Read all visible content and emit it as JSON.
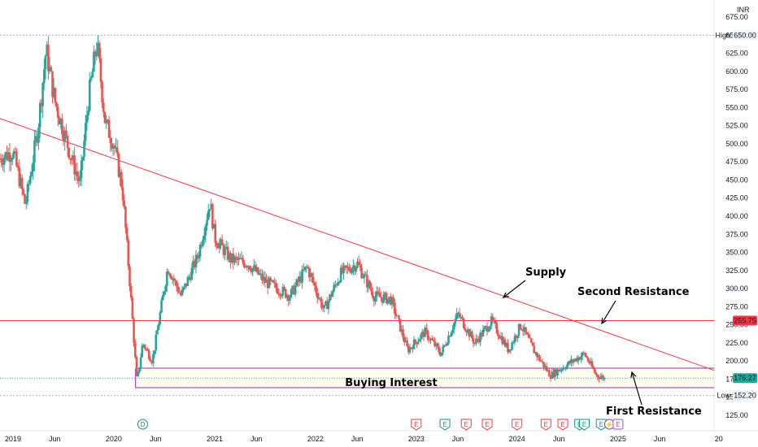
{
  "chart_data": {
    "type": "candlestick",
    "currency": "INR",
    "ylim": [
      112.5,
      687.5
    ],
    "y_ticks": [
      675,
      650,
      625,
      600,
      575,
      550,
      525,
      500,
      475,
      450,
      425,
      400,
      375,
      350,
      325,
      300,
      275,
      250,
      225,
      200,
      175,
      150,
      125
    ],
    "y_tick_labels": [
      "675.00",
      "650.00",
      "625.00",
      "600.00",
      "575.00",
      "550.00",
      "525.00",
      "500.00",
      "475.00",
      "450.00",
      "425.00",
      "400.00",
      "375.00",
      "350.00",
      "325.00",
      "300.00",
      "275.00",
      "250.00",
      "225.00",
      "200.00",
      "175.00",
      "150.00",
      "125.00"
    ],
    "x_range": [
      "2018-11-15",
      "2025-12-15"
    ],
    "x_ticks": [
      {
        "date": "2019-01-01",
        "label": "2019"
      },
      {
        "date": "2019-06-01",
        "label": "Jun"
      },
      {
        "date": "2020-01-01",
        "label": "2020"
      },
      {
        "date": "2020-06-01",
        "label": "Jun"
      },
      {
        "date": "2021-01-01",
        "label": "2021"
      },
      {
        "date": "2021-06-01",
        "label": "Jun"
      },
      {
        "date": "2022-01-01",
        "label": "2022"
      },
      {
        "date": "2022-06-01",
        "label": "Jun"
      },
      {
        "date": "2023-01-01",
        "label": "2023"
      },
      {
        "date": "2023-06-01",
        "label": "Jun"
      },
      {
        "date": "2024-01-01",
        "label": "2024"
      },
      {
        "date": "2024-06-01",
        "label": "Jun"
      },
      {
        "date": "2025-01-01",
        "label": "2025"
      },
      {
        "date": "2025-06-01",
        "label": "Jun"
      },
      {
        "date": "2026-01-01",
        "label": "20"
      }
    ],
    "price_path": [
      {
        "date": "2018-11-15",
        "close": 480
      },
      {
        "date": "2019-01-01",
        "close": 490
      },
      {
        "date": "2019-02-15",
        "close": 415
      },
      {
        "date": "2019-04-01",
        "close": 520
      },
      {
        "date": "2019-05-01",
        "close": 630
      },
      {
        "date": "2019-06-01",
        "close": 560
      },
      {
        "date": "2019-08-01",
        "close": 480
      },
      {
        "date": "2019-09-01",
        "close": 445
      },
      {
        "date": "2019-10-01",
        "close": 560
      },
      {
        "date": "2019-11-01",
        "close": 640
      },
      {
        "date": "2019-12-01",
        "close": 530
      },
      {
        "date": "2020-01-01",
        "close": 500
      },
      {
        "date": "2020-02-01",
        "close": 440
      },
      {
        "date": "2020-03-01",
        "close": 300
      },
      {
        "date": "2020-03-25",
        "close": 170
      },
      {
        "date": "2020-04-15",
        "close": 225
      },
      {
        "date": "2020-05-20",
        "close": 200
      },
      {
        "date": "2020-07-15",
        "close": 330
      },
      {
        "date": "2020-09-01",
        "close": 290
      },
      {
        "date": "2020-11-01",
        "close": 345
      },
      {
        "date": "2020-12-15",
        "close": 420
      },
      {
        "date": "2021-01-01",
        "close": 370
      },
      {
        "date": "2021-03-01",
        "close": 340
      },
      {
        "date": "2021-05-01",
        "close": 335
      },
      {
        "date": "2021-07-01",
        "close": 310
      },
      {
        "date": "2021-10-01",
        "close": 290
      },
      {
        "date": "2021-12-01",
        "close": 330
      },
      {
        "date": "2022-02-01",
        "close": 270
      },
      {
        "date": "2022-04-01",
        "close": 320
      },
      {
        "date": "2022-06-01",
        "close": 335
      },
      {
        "date": "2022-08-01",
        "close": 290
      },
      {
        "date": "2022-10-01",
        "close": 285
      },
      {
        "date": "2022-12-01",
        "close": 215
      },
      {
        "date": "2023-02-01",
        "close": 240
      },
      {
        "date": "2023-04-01",
        "close": 210
      },
      {
        "date": "2023-06-01",
        "close": 265
      },
      {
        "date": "2023-08-01",
        "close": 225
      },
      {
        "date": "2023-10-01",
        "close": 255
      },
      {
        "date": "2023-12-01",
        "close": 215
      },
      {
        "date": "2024-01-15",
        "close": 250
      },
      {
        "date": "2024-03-01",
        "close": 215
      },
      {
        "date": "2024-05-01",
        "close": 180
      },
      {
        "date": "2024-07-01",
        "close": 195
      },
      {
        "date": "2024-09-01",
        "close": 210
      },
      {
        "date": "2024-10-15",
        "close": 180
      },
      {
        "date": "2024-11-15",
        "close": 176.27
      }
    ],
    "high": {
      "label": "High",
      "value": 650
    },
    "low": {
      "label": "Low",
      "value": 152.2
    },
    "last_price": {
      "value": 176.27,
      "label": "176.27",
      "color": "#26a69a"
    },
    "horizontal_line": {
      "value": 255.75,
      "label": "255.75",
      "color": "#f23645"
    },
    "trendline": {
      "start": {
        "date": "2018-11-15",
        "value": 535
      },
      "end": {
        "date": "2025-12-15",
        "value": 187
      },
      "color": "#f23645"
    },
    "zone": {
      "top": 190,
      "bottom": 163,
      "from": "2020-03-20",
      "to": "2025-12-15",
      "color": "#9c27b0"
    },
    "annotations": [
      {
        "text": "Supply"
      },
      {
        "text": "Second Resistance"
      },
      {
        "text": "Buying Interest"
      },
      {
        "text": "First Resistance"
      }
    ],
    "event_markers": [
      {
        "date": "2020-04-15",
        "kind": "dividend",
        "letter": "D"
      },
      {
        "date": "2023-01-01",
        "kind": "earnings-down",
        "letter": "E"
      },
      {
        "date": "2023-04-15",
        "kind": "earnings-up",
        "letter": "E"
      },
      {
        "date": "2023-07-01",
        "kind": "earnings-down",
        "letter": "E"
      },
      {
        "date": "2023-09-15",
        "kind": "earnings-down",
        "letter": "E"
      },
      {
        "date": "2024-01-01",
        "kind": "earnings-down",
        "letter": "E"
      },
      {
        "date": "2024-04-15",
        "kind": "earnings-down",
        "letter": "E"
      },
      {
        "date": "2024-06-15",
        "kind": "earnings-down",
        "letter": "E"
      },
      {
        "date": "2024-08-15",
        "kind": "earnings-up",
        "letter": "E"
      },
      {
        "date": "2024-09-01",
        "kind": "earnings-up",
        "letter": "E"
      },
      {
        "date": "2024-11-01",
        "kind": "earnings-up",
        "letter": "E"
      },
      {
        "date": "2024-12-01",
        "kind": "split",
        "letter": "⚡"
      },
      {
        "date": "2025-01-01",
        "kind": "earnings-future",
        "letter": "E"
      }
    ],
    "colors": {
      "up": "#26a69a",
      "down": "#ef5350",
      "trend": "#f23645",
      "zone": "#9c27b0",
      "grid": "#b2b5be",
      "text": "#131722"
    }
  }
}
